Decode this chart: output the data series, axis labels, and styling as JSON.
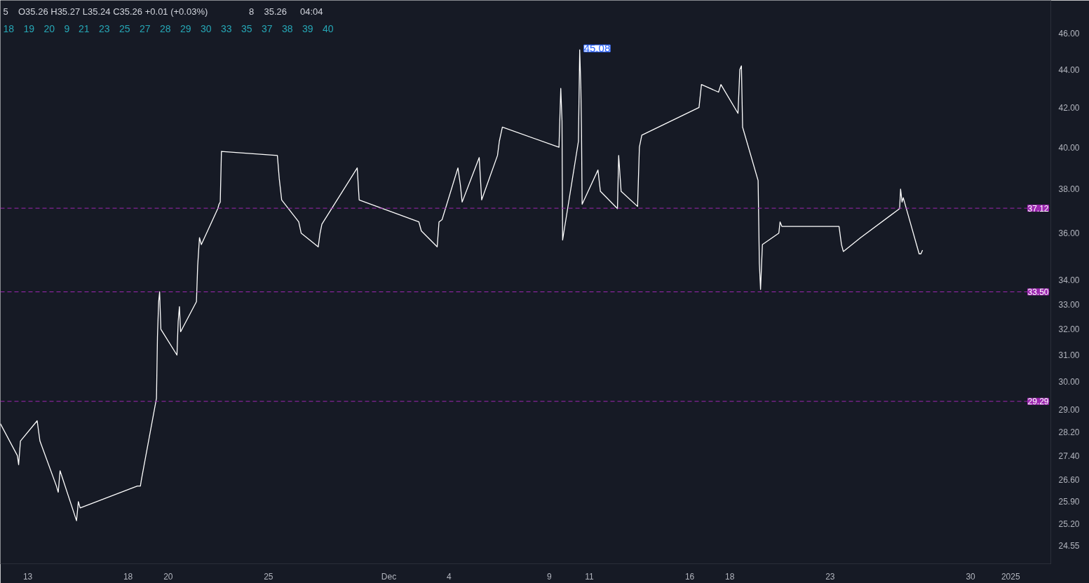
{
  "chart_data": {
    "type": "line",
    "x": [
      "2024-11-11T15:13",
      "2024-11-12T11:39",
      "2024-11-12T13:05",
      "2024-11-12T15:17",
      "2024-11-13T11:15",
      "2024-11-13T14:34",
      "2024-11-14T10:17",
      "2024-11-14T12:29",
      "2024-11-14T14:38",
      "2024-11-15T10:21",
      "2024-11-15T12:33",
      "2024-11-15T14:42",
      "2024-11-18T11:08",
      "2024-11-18T14:46",
      "2024-11-18T15:56",
      "2024-11-19T10:01",
      "2024-11-19T11:11",
      "2024-11-19T12:37",
      "2024-11-19T13:47",
      "2024-11-19T15:17",
      "2024-11-20T10:32",
      "2024-11-20T11:58",
      "2024-11-20T13:28",
      "2024-11-20T14:54",
      "2024-11-21T09:50",
      "2024-11-21T11:19",
      "2024-11-21T13:28",
      "2024-11-21T15:41",
      "2024-11-22T11:23",
      "2024-11-22T12:49",
      "2024-11-22T14:19",
      "2024-11-22T15:44",
      "2024-11-25T10:40",
      "2024-11-25T12:53",
      "2024-11-25T15:48",
      "2024-11-26T12:14",
      "2024-11-26T15:09",
      "2024-11-27T11:31",
      "2024-11-27T13:44",
      "2024-11-27T15:56",
      "2024-11-29T10:12",
      "2024-11-29T12:31",
      "2024-12-02T11:58",
      "2024-12-02T14:54",
      "2024-12-03T09:53",
      "2024-12-03T12:02",
      "2024-12-03T15:41",
      "2024-12-04T10:40",
      "2024-12-04T13:36",
      "2024-12-04T15:44",
      "2024-12-05T12:10",
      "2024-12-05T15:05",
      "2024-12-06T10:01",
      "2024-12-06T12:14",
      "2024-12-06T15:52",
      "2024-12-09T11:35",
      "2024-12-09T13:44",
      "2024-12-09T15:13",
      "2024-12-09T15:56",
      "2024-12-10T10:52",
      "2024-12-10T12:22",
      "2024-12-10T13:47",
      "2024-12-10T14:30",
      "2024-12-10T15:17",
      "2024-12-11T10:13",
      "2024-12-11T13:08",
      "2024-12-12T09:34",
      "2024-12-12T11:00",
      "2024-12-12T13:55",
      "2024-12-13T09:38",
      "2024-12-13T11:47",
      "2024-12-13T14:42",
      "2024-12-16T11:08",
      "2024-12-16T14:03",
      "2024-12-17T10:29",
      "2024-12-17T13:20",
      "2024-12-18T09:46",
      "2024-12-18T11:58",
      "2024-12-18T13:51",
      "2024-12-18T15:17",
      "2024-12-19T09:50",
      "2024-12-19T11:19",
      "2024-12-19T12:45",
      "2024-12-19T14:58",
      "2024-12-20T10:36",
      "2024-12-20T12:06",
      "2024-12-20T14:15",
      "2024-12-23T10:40",
      "2024-12-23T13:36",
      "2024-12-23T15:48",
      "2024-12-24T12:22",
      "2024-12-26T11:08",
      "2024-12-26T12:18",
      "2024-12-26T14:03",
      "2024-12-26T15:29",
      "2024-12-27T10:29",
      "2024-12-27T12:37",
      "2024-12-27T14:34"
    ],
    "series": [
      {
        "color": "#ffffff",
        "values": [
          28.5,
          27.4,
          27.1,
          27.9,
          28.6,
          27.9,
          26.4,
          26.2,
          26.9,
          25.3,
          25.9,
          25.7,
          26.4,
          26.4,
          26.6,
          29.4,
          31.7,
          33.1,
          33.5,
          32.0,
          31.0,
          32.3,
          32.9,
          31.9,
          33.1,
          34.6,
          35.8,
          35.5,
          37.1,
          37.3,
          37.4,
          39.8,
          39.6,
          38.5,
          37.5,
          36.5,
          36.0,
          35.4,
          36.0,
          36.4,
          39.0,
          37.5,
          36.5,
          36.1,
          35.4,
          36.5,
          36.6,
          39.0,
          38.2,
          37.4,
          39.5,
          37.5,
          39.6,
          40.3,
          41.0,
          40.0,
          43.0,
          41.3,
          35.7,
          40.3,
          45.08,
          43.0,
          41.0,
          37.3,
          38.9,
          37.9,
          37.1,
          39.6,
          37.9,
          37.2,
          40.0,
          40.6,
          42.0,
          43.2,
          42.8,
          43.2,
          41.7,
          44.0,
          44.2,
          41.0,
          38.4,
          34.7,
          33.6,
          35.5,
          36.0,
          36.5,
          36.3,
          36.3,
          35.5,
          35.2,
          35.8,
          37.1,
          38.0,
          37.4,
          37.6,
          35.1,
          35.1,
          35.26
        ]
      }
    ],
    "xlim": [
      "2024-11-11T15:13",
      "2025-01-03"
    ],
    "xticks": [
      {
        "value": "2024-11-13",
        "label": "13"
      },
      {
        "value": "2024-11-18",
        "label": "18"
      },
      {
        "value": "2024-11-20",
        "label": "20"
      },
      {
        "value": "2024-11-25",
        "label": "25"
      },
      {
        "value": "2024-12-01",
        "label": "Dec"
      },
      {
        "value": "2024-12-04",
        "label": "4"
      },
      {
        "value": "2024-12-09",
        "label": "9"
      },
      {
        "value": "2024-12-11",
        "label": "11"
      },
      {
        "value": "2024-12-16",
        "label": "16"
      },
      {
        "value": "2024-12-18",
        "label": "18"
      },
      {
        "value": "2024-12-23",
        "label": "23"
      },
      {
        "value": "2024-12-30",
        "label": "30"
      },
      {
        "value": "2025-01-01",
        "label": "2025"
      }
    ],
    "ylim": [
      24.0,
      47.9
    ],
    "log": true,
    "yticks": [
      24.55,
      {
        "value": 25.2,
        "label": "25.20"
      },
      {
        "value": 25.9,
        "label": "25.90"
      },
      {
        "value": 26.6,
        "label": "26.60"
      },
      {
        "value": 27.4,
        "label": "27.40"
      },
      {
        "value": 28.2,
        "label": "28.20"
      },
      {
        "value": 29,
        "label": "29.00"
      },
      {
        "value": 30,
        "label": "30.00"
      },
      {
        "value": 31,
        "label": "31.00"
      },
      {
        "value": 32,
        "label": "32.00"
      },
      {
        "value": 33,
        "label": "33.00"
      },
      {
        "value": 34,
        "label": "34.00"
      },
      {
        "value": 36,
        "label": "36.00"
      },
      {
        "value": 38,
        "label": "38.00"
      },
      {
        "value": 40,
        "label": "40.00"
      },
      {
        "value": 42,
        "label": "42.00"
      },
      {
        "value": 44,
        "label": "44.00"
      },
      {
        "value": 46,
        "label": "46.00"
      }
    ],
    "grid": false,
    "ref_lines": [
      {
        "axis": "y",
        "value": 37.12,
        "label": "37.12",
        "color": "#9c27b0",
        "line_style": "dashed"
      },
      {
        "axis": "y",
        "value": 33.5,
        "label": "33.50",
        "color": "#9c27b0",
        "line_style": "dashed"
      },
      {
        "axis": "y",
        "value": 29.29,
        "label": "29.29",
        "color": "#9c27b0",
        "line_style": "dashed"
      }
    ],
    "annotations": [
      "5",
      "O35.26 H35.27 L35.24 C35.26 +0.01 (+0.03%)",
      "8",
      {
        "text": "45.08",
        "x": "2024-12-10T12:22",
        "y": 45.08
      },
      "35.26",
      "04:04",
      "18",
      "19",
      "20",
      "9",
      "21",
      "23",
      "25",
      "27",
      "28",
      "29",
      "30",
      "33",
      "35",
      "37",
      "38",
      "39",
      "40"
    ]
  }
}
